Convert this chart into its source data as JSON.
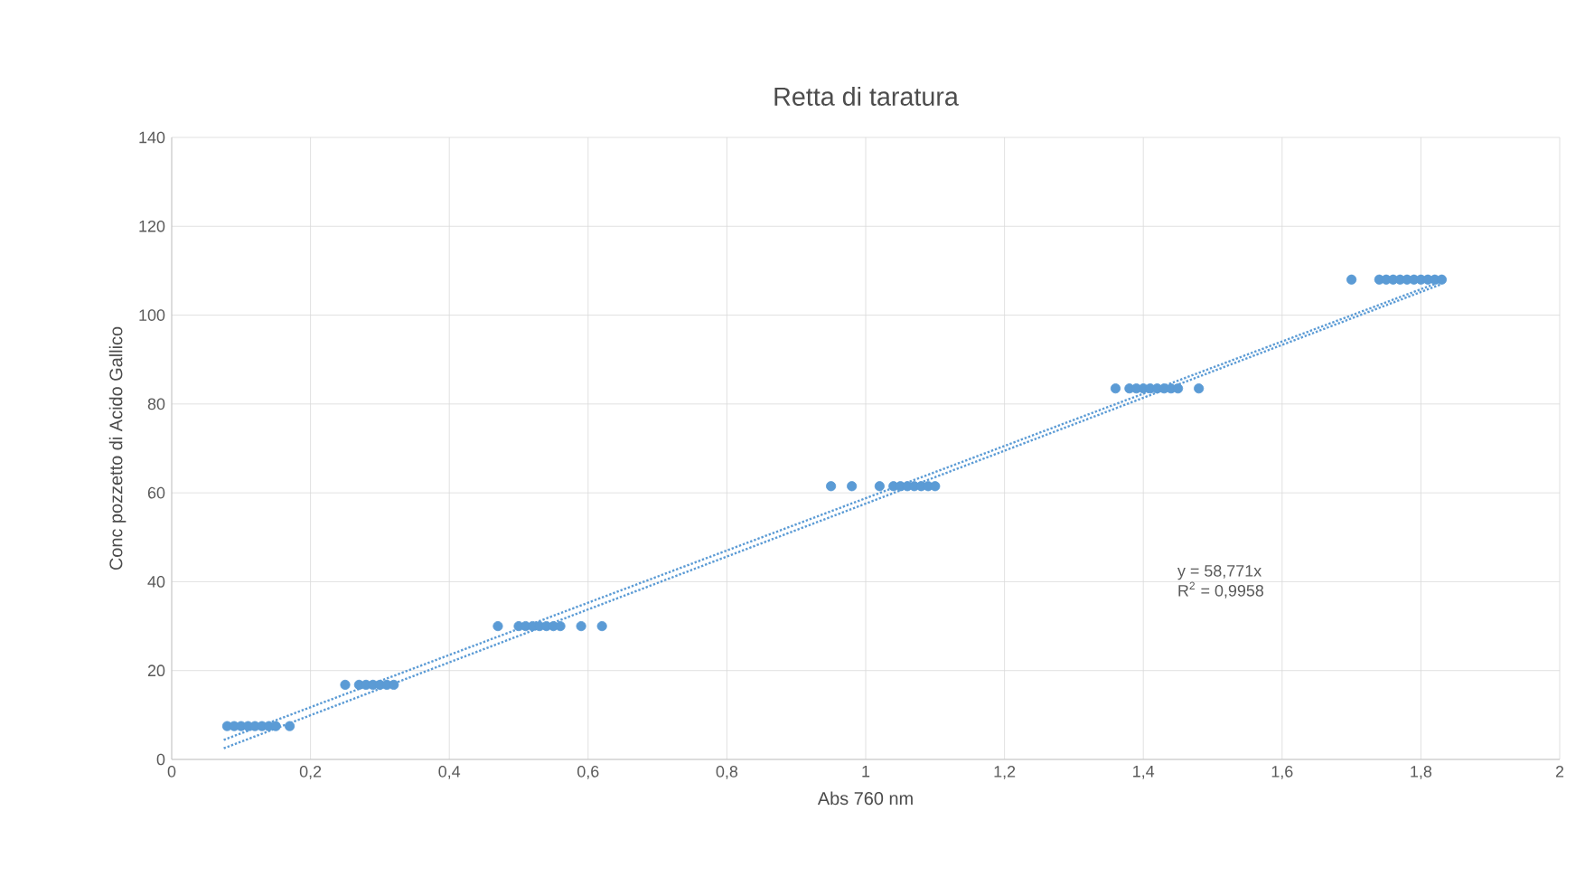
{
  "chart_data": {
    "type": "scatter",
    "title": "Retta di taratura",
    "xlabel": "Abs 760 nm",
    "ylabel": "Conc pozzetto di Acido Gallico",
    "xlim": [
      0,
      2
    ],
    "ylim": [
      0,
      140
    ],
    "xticks": [
      0,
      {
        "value": 0.2,
        "label": "0,2"
      },
      {
        "value": 0.4,
        "label": "0,4"
      },
      {
        "value": 0.6,
        "label": "0,6"
      },
      {
        "value": 0.8,
        "label": "0,8"
      },
      1,
      {
        "value": 1.2,
        "label": "1,2"
      },
      {
        "value": 1.4,
        "label": "1,4"
      },
      {
        "value": 1.6,
        "label": "1,6"
      },
      {
        "value": 1.8,
        "label": "1,8"
      },
      2
    ],
    "yticks": [
      0,
      20,
      40,
      60,
      80,
      100,
      120,
      140
    ],
    "grid": true,
    "annotations": [
      "y = 58,771x",
      "R$^{2}$ = 0,9958"
    ],
    "series": [
      {
        "color": "#5b9bd5",
        "x": [
          0.08,
          0.09,
          0.1,
          0.11,
          0.12,
          0.13,
          0.14,
          0.15,
          0.17,
          0.25,
          0.27,
          0.28,
          0.29,
          0.3,
          0.31,
          0.32,
          0.47,
          0.5,
          0.51,
          0.52,
          0.53,
          0.54,
          0.55,
          0.56,
          0.59,
          0.62,
          0.95,
          0.98,
          1.02,
          1.04,
          1.05,
          1.06,
          1.07,
          1.08,
          1.09,
          1.1,
          1.36,
          1.38,
          1.39,
          1.4,
          1.41,
          1.42,
          1.43,
          1.44,
          1.45,
          1.48,
          1.7,
          1.74,
          1.75,
          1.76,
          1.77,
          1.78,
          1.79,
          1.8,
          1.81,
          1.82,
          1.83
        ],
        "values": [
          7.5,
          7.5,
          7.5,
          7.5,
          7.5,
          7.5,
          7.5,
          7.5,
          7.5,
          16.8,
          16.8,
          16.8,
          16.8,
          16.8,
          16.8,
          16.8,
          30,
          30,
          30,
          30,
          30,
          30,
          30,
          30,
          30,
          30,
          61.5,
          61.5,
          61.5,
          61.5,
          61.5,
          61.5,
          61.5,
          61.5,
          61.5,
          61.5,
          83.5,
          83.5,
          83.5,
          83.5,
          83.5,
          83.5,
          83.5,
          83.5,
          83.5,
          83.5,
          108,
          108,
          108,
          108,
          108,
          108,
          108,
          108,
          108,
          108,
          108
        ]
      },
      {
        "type": "line",
        "marker": "none",
        "line_style": "dotted",
        "color": "#5b9bd5",
        "x": [
          0.075,
          1.83
        ],
        "values": [
          4.4,
          107.6
        ]
      },
      {
        "type": "line",
        "marker": "none",
        "line_style": "dotted",
        "color": "#5b9bd5",
        "x": [
          0.075,
          1.83
        ],
        "values": [
          2.5,
          107.0
        ]
      }
    ]
  }
}
